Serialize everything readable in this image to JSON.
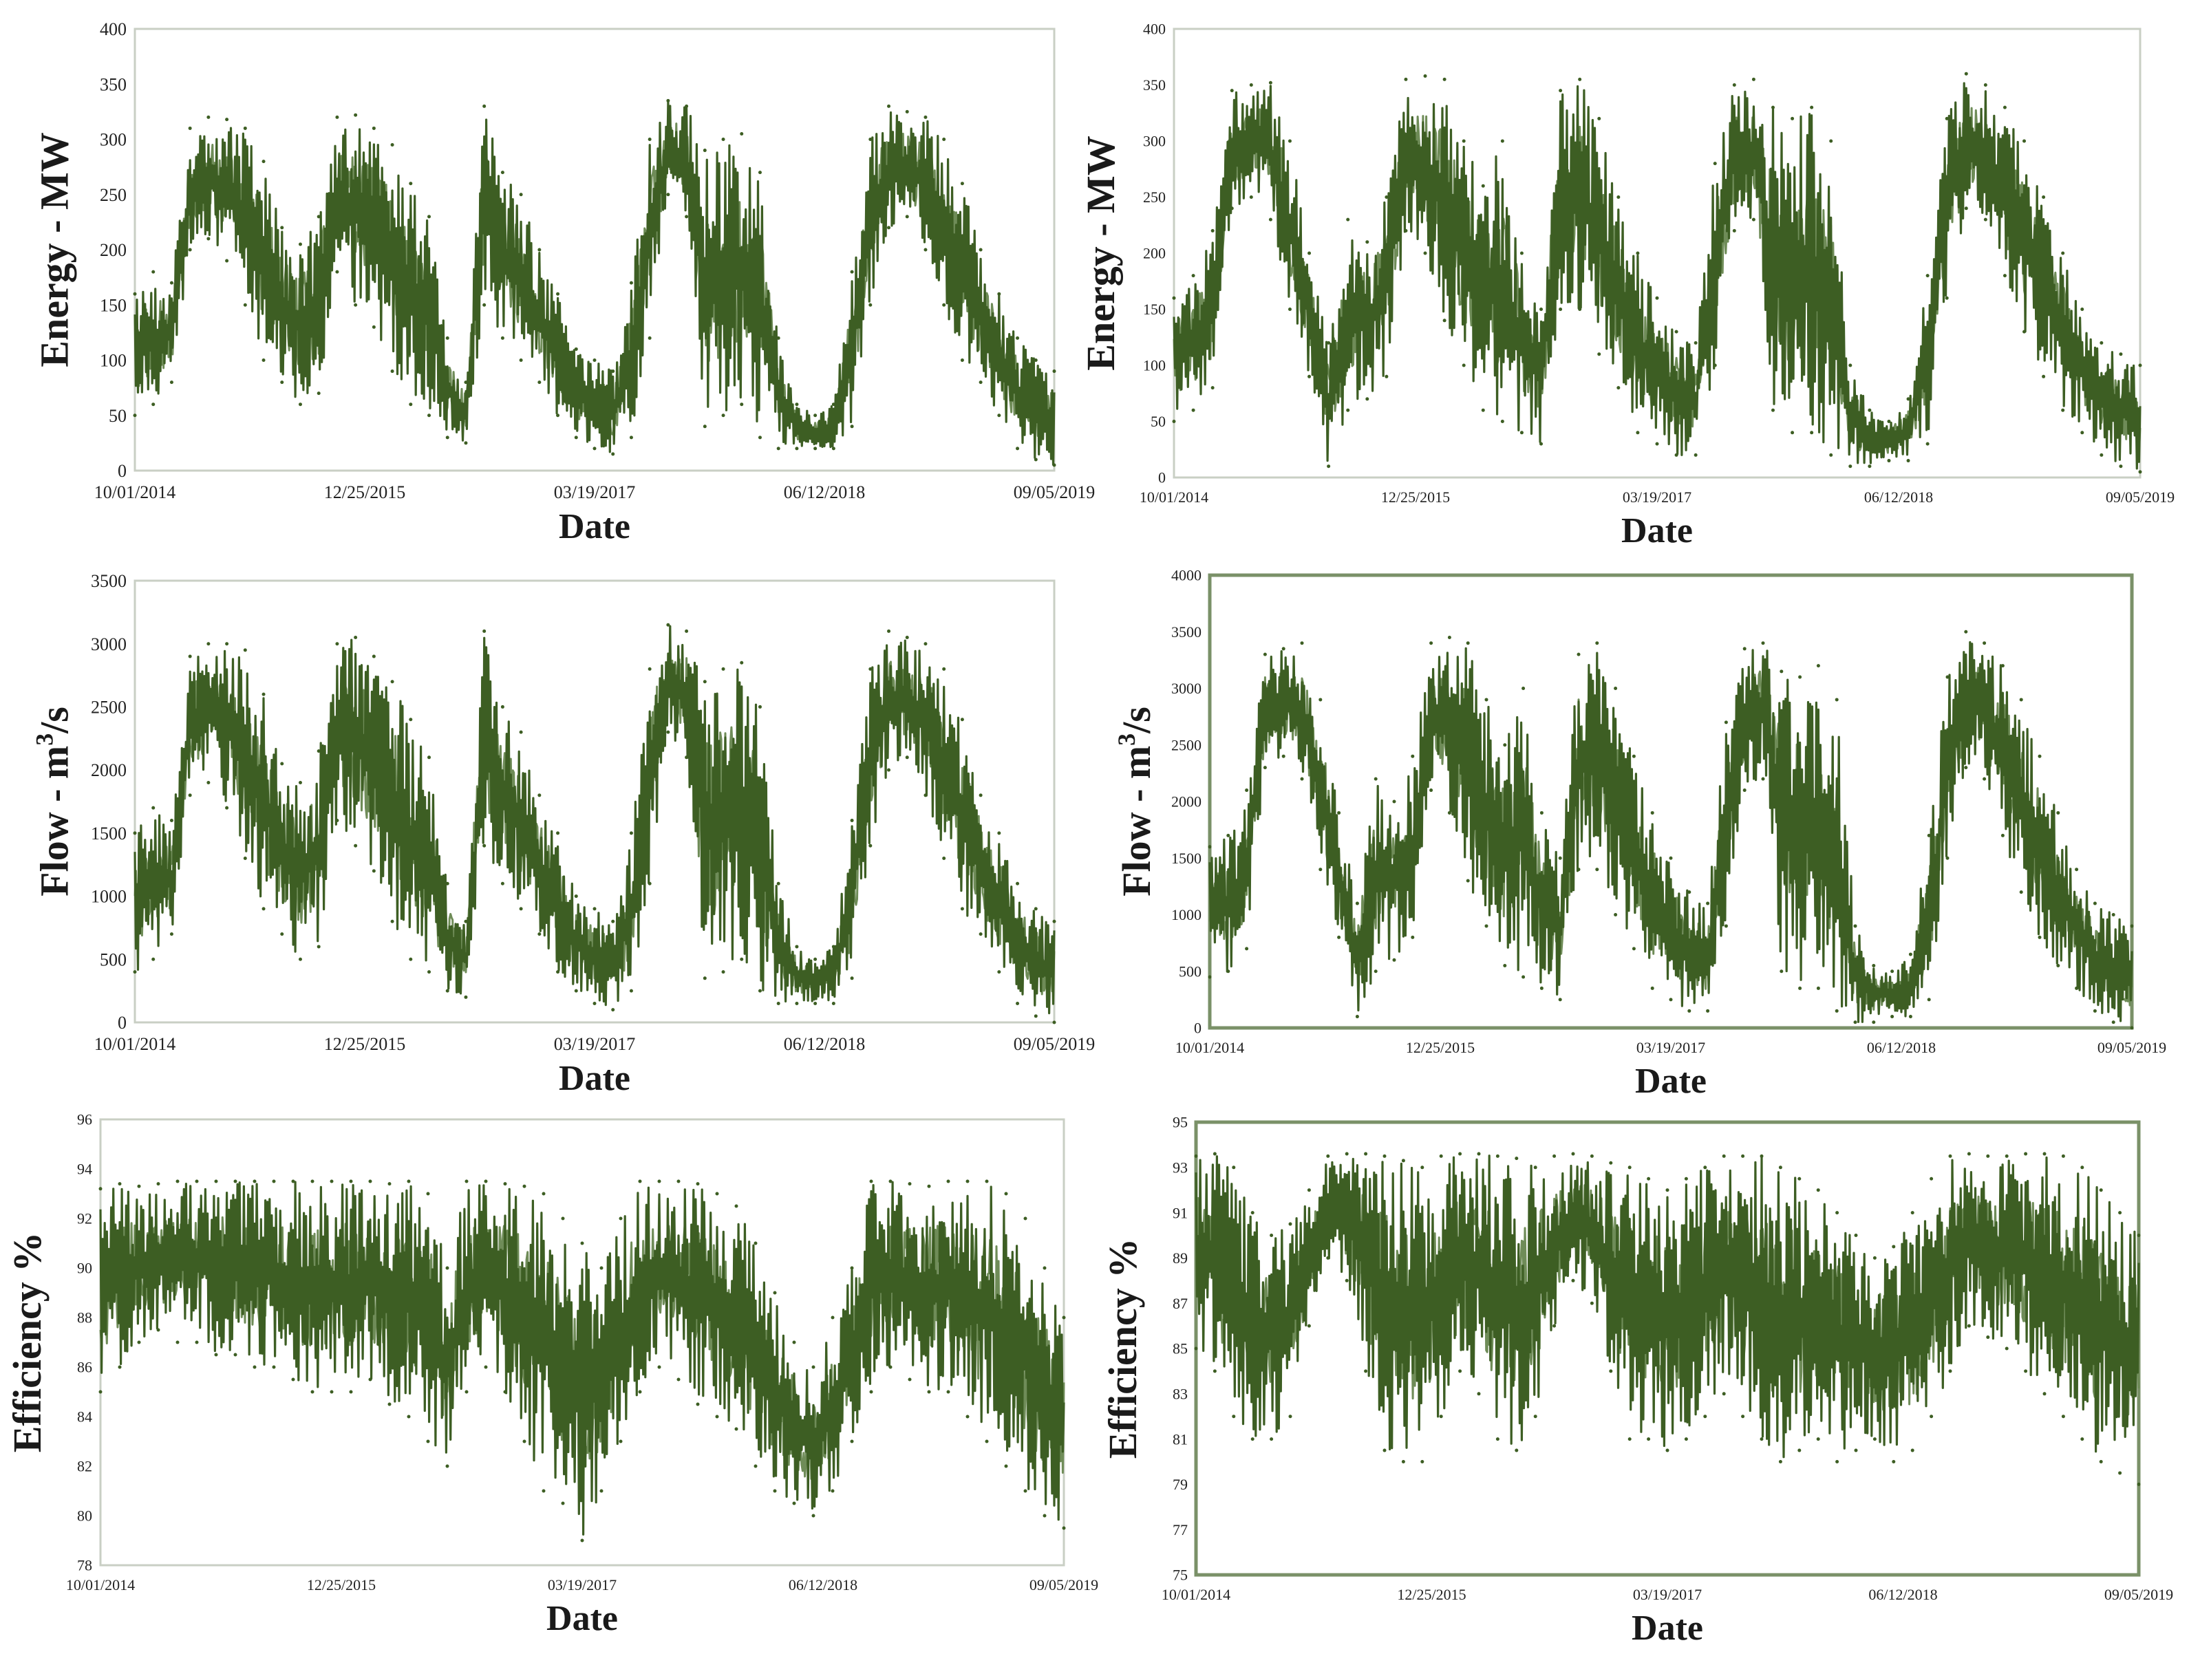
{
  "colors": {
    "series": "#3d5e23",
    "series_light": "#6f8c58",
    "frame": "#c9cfc4",
    "frame_heavy": "#7a9168",
    "background": "#ffffff"
  },
  "x_tick_labels": [
    "10/01/2014",
    "12/25/2015",
    "03/19/2017",
    "06/12/2018",
    "09/05/2019"
  ],
  "chart_data": [
    {
      "id": "energy-left",
      "type": "line",
      "title": "",
      "xlabel": "Date",
      "ylabel_text": "Energy - MW",
      "x_tick_labels": [
        "10/01/2014",
        "12/25/2015",
        "03/19/2017",
        "06/12/2018",
        "09/05/2019"
      ],
      "xlim": [
        0,
        100
      ],
      "ylim": [
        0,
        400
      ],
      "y_ticks": [
        0,
        50,
        100,
        150,
        200,
        250,
        300,
        350,
        400
      ],
      "x": [
        0,
        2,
        4,
        6,
        8,
        10,
        12,
        14,
        16,
        18,
        20,
        22,
        24,
        26,
        28,
        30,
        32,
        34,
        36,
        38,
        40,
        42,
        44,
        46,
        48,
        50,
        52,
        54,
        56,
        58,
        60,
        62,
        64,
        66,
        68,
        70,
        72,
        74,
        76,
        78,
        80,
        82,
        84,
        86,
        88,
        90,
        92,
        94,
        96,
        98,
        100
      ],
      "series": [
        {
          "name": "Energy",
          "upper": [
            160,
            180,
            170,
            310,
            320,
            318,
            310,
            280,
            220,
            205,
            230,
            320,
            322,
            310,
            295,
            260,
            230,
            120,
            80,
            330,
            270,
            250,
            200,
            160,
            110,
            100,
            90,
            170,
            300,
            335,
            330,
            290,
            300,
            305,
            270,
            120,
            60,
            50,
            60,
            180,
            300,
            330,
            325,
            320,
            300,
            260,
            200,
            160,
            120,
            100,
            90
          ],
          "lower": [
            50,
            60,
            80,
            200,
            210,
            190,
            150,
            100,
            80,
            60,
            70,
            180,
            150,
            130,
            90,
            60,
            50,
            30,
            25,
            150,
            120,
            100,
            80,
            50,
            30,
            20,
            15,
            30,
            120,
            250,
            230,
            40,
            50,
            60,
            30,
            20,
            20,
            20,
            20,
            40,
            150,
            220,
            230,
            200,
            150,
            100,
            80,
            50,
            20,
            10,
            5
          ]
        }
      ]
    },
    {
      "id": "energy-right",
      "type": "line",
      "title": "",
      "xlabel": "Date",
      "ylabel_text": "Energy - MW",
      "x_tick_labels": [
        "10/01/2014",
        "12/25/2015",
        "03/19/2017",
        "06/12/2018",
        "09/05/2019"
      ],
      "xlim": [
        0,
        100
      ],
      "ylim": [
        0,
        400
      ],
      "y_ticks": [
        0,
        50,
        100,
        150,
        200,
        250,
        300,
        350,
        400
      ],
      "x": [
        0,
        2,
        4,
        6,
        8,
        10,
        12,
        14,
        16,
        18,
        20,
        22,
        24,
        26,
        28,
        30,
        32,
        34,
        36,
        38,
        40,
        42,
        44,
        46,
        48,
        50,
        52,
        54,
        56,
        58,
        60,
        62,
        64,
        66,
        68,
        70,
        72,
        74,
        76,
        78,
        80,
        82,
        84,
        86,
        88,
        90,
        92,
        94,
        96,
        98,
        100
      ],
      "series": [
        {
          "name": "Energy",
          "upper": [
            160,
            180,
            220,
            345,
            350,
            352,
            300,
            200,
            120,
            230,
            210,
            250,
            355,
            358,
            355,
            300,
            260,
            300,
            200,
            150,
            345,
            355,
            320,
            250,
            200,
            160,
            130,
            120,
            280,
            350,
            355,
            330,
            320,
            330,
            300,
            100,
            60,
            50,
            70,
            180,
            320,
            360,
            350,
            330,
            300,
            250,
            200,
            150,
            120,
            110,
            100
          ],
          "lower": [
            50,
            60,
            80,
            240,
            250,
            230,
            150,
            90,
            10,
            60,
            70,
            90,
            220,
            200,
            140,
            100,
            60,
            50,
            40,
            30,
            150,
            150,
            110,
            80,
            40,
            30,
            20,
            20,
            100,
            220,
            230,
            60,
            40,
            40,
            20,
            10,
            10,
            15,
            15,
            30,
            160,
            240,
            230,
            180,
            130,
            90,
            60,
            40,
            20,
            10,
            5
          ]
        }
      ]
    },
    {
      "id": "flow-left",
      "type": "line",
      "title": "",
      "xlabel": "Date",
      "ylabel_text": "Flow - m3/s",
      "x_tick_labels": [
        "10/01/2014",
        "12/25/2015",
        "03/19/2017",
        "06/12/2018",
        "09/05/2019"
      ],
      "xlim": [
        0,
        100
      ],
      "ylim": [
        0,
        3500
      ],
      "y_ticks": [
        0,
        500,
        1000,
        1500,
        2000,
        2500,
        3000,
        3500
      ],
      "x": [
        0,
        2,
        4,
        6,
        8,
        10,
        12,
        14,
        16,
        18,
        20,
        22,
        24,
        26,
        28,
        30,
        32,
        34,
        36,
        38,
        40,
        42,
        44,
        46,
        48,
        50,
        52,
        54,
        56,
        58,
        60,
        62,
        64,
        66,
        68,
        70,
        72,
        74,
        76,
        78,
        80,
        82,
        84,
        86,
        88,
        90,
        92,
        94,
        96,
        98,
        100
      ],
      "series": [
        {
          "name": "Flow",
          "upper": [
            1500,
            1700,
            1600,
            2900,
            3000,
            3000,
            2950,
            2600,
            2050,
            1900,
            2150,
            3000,
            3050,
            2900,
            2700,
            2400,
            2100,
            1100,
            800,
            3100,
            2500,
            2300,
            1800,
            1500,
            1000,
            900,
            800,
            1500,
            2800,
            3150,
            3100,
            2700,
            2800,
            2850,
            2500,
            1100,
            600,
            500,
            600,
            1600,
            2800,
            3100,
            3050,
            3000,
            2800,
            2400,
            1800,
            1500,
            1100,
            900,
            800
          ],
          "lower": [
            400,
            500,
            700,
            1800,
            1900,
            1700,
            1300,
            900,
            700,
            500,
            600,
            1600,
            1400,
            1200,
            800,
            500,
            400,
            250,
            200,
            1400,
            1100,
            900,
            700,
            400,
            250,
            150,
            100,
            250,
            1100,
            2300,
            2100,
            350,
            400,
            500,
            250,
            150,
            150,
            150,
            150,
            350,
            1400,
            2000,
            2100,
            1800,
            1300,
            900,
            700,
            400,
            150,
            50,
            0
          ]
        }
      ]
    },
    {
      "id": "flow-right",
      "type": "line",
      "title": "",
      "xlabel": "Date",
      "ylabel_text": "Flow - m3/s",
      "x_tick_labels": [
        "10/01/2014",
        "12/25/2015",
        "03/19/2017",
        "06/12/2018",
        "09/05/2019"
      ],
      "xlim": [
        0,
        100
      ],
      "ylim": [
        0,
        4000
      ],
      "y_ticks": [
        0,
        500,
        1000,
        1500,
        2000,
        2500,
        3000,
        3500,
        4000
      ],
      "x": [
        0,
        2,
        4,
        6,
        8,
        10,
        12,
        14,
        16,
        18,
        20,
        22,
        24,
        26,
        28,
        30,
        32,
        34,
        36,
        38,
        40,
        42,
        44,
        46,
        48,
        50,
        52,
        54,
        56,
        58,
        60,
        62,
        64,
        66,
        68,
        70,
        72,
        74,
        76,
        78,
        80,
        82,
        84,
        86,
        88,
        90,
        92,
        94,
        96,
        98,
        100
      ],
      "series": [
        {
          "name": "Flow",
          "upper": [
            1600,
            1700,
            2100,
            3300,
            3350,
            3400,
            2900,
            1900,
            1100,
            2200,
            2000,
            2400,
            3400,
            3450,
            3400,
            2900,
            2500,
            3000,
            1900,
            1500,
            3300,
            3400,
            3000,
            2400,
            1900,
            1500,
            1200,
            1100,
            2700,
            3350,
            3400,
            3150,
            3100,
            3200,
            2900,
            900,
            550,
            500,
            650,
            1700,
            3100,
            3500,
            3400,
            3200,
            2900,
            2400,
            1900,
            1400,
            1100,
            1000,
            900
          ],
          "lower": [
            450,
            500,
            700,
            2300,
            2400,
            2200,
            1400,
            800,
            100,
            500,
            600,
            800,
            2100,
            1900,
            1300,
            900,
            550,
            450,
            350,
            250,
            1400,
            1400,
            1000,
            700,
            350,
            250,
            150,
            150,
            900,
            2100,
            2200,
            500,
            350,
            350,
            150,
            50,
            50,
            100,
            100,
            250,
            1500,
            2300,
            2200,
            1700,
            1200,
            800,
            550,
            350,
            150,
            50,
            0
          ]
        }
      ]
    },
    {
      "id": "efficiency-left",
      "type": "line",
      "title": "",
      "xlabel": "Date",
      "ylabel_text": "Efficiency %",
      "x_tick_labels": [
        "10/01/2014",
        "12/25/2015",
        "03/19/2017",
        "06/12/2018",
        "09/05/2019"
      ],
      "xlim": [
        0,
        100
      ],
      "ylim": [
        78,
        96
      ],
      "y_ticks": [
        78,
        80,
        82,
        84,
        86,
        88,
        90,
        92,
        94,
        96
      ],
      "x": [
        0,
        2,
        4,
        6,
        8,
        10,
        12,
        14,
        16,
        18,
        20,
        22,
        24,
        26,
        28,
        30,
        32,
        34,
        36,
        38,
        40,
        42,
        44,
        46,
        48,
        50,
        52,
        54,
        56,
        58,
        60,
        62,
        64,
        66,
        68,
        70,
        72,
        74,
        76,
        78,
        80,
        82,
        84,
        86,
        88,
        90,
        92,
        94,
        96,
        98,
        100
      ],
      "series": [
        {
          "name": "Efficiency",
          "upper": [
            93.2,
            93.4,
            93.3,
            93.4,
            93.5,
            93.5,
            93.5,
            93.5,
            93.5,
            93.5,
            93.5,
            93.5,
            93.5,
            93.5,
            93.5,
            93.4,
            93.5,
            93.0,
            90.0,
            93.5,
            93.5,
            93.4,
            93.3,
            93.0,
            92.0,
            91.0,
            90.0,
            92.0,
            93.5,
            93.5,
            93.5,
            93.4,
            93.0,
            92.5,
            91.0,
            89.0,
            87.0,
            86.0,
            88.0,
            90.0,
            93.5,
            93.5,
            93.4,
            93.3,
            93.5,
            93.5,
            93.5,
            93.0,
            92.0,
            90.0,
            88.0
          ],
          "lower": [
            85.0,
            86.0,
            87.0,
            87.5,
            87.0,
            87.0,
            86.5,
            86.5,
            86.0,
            86.0,
            85.5,
            85.0,
            85.0,
            85.0,
            85.5,
            84.5,
            84.0,
            83.0,
            82.0,
            85.0,
            86.0,
            85.0,
            83.0,
            81.0,
            80.5,
            79.0,
            81.0,
            83.0,
            85.0,
            86.0,
            85.5,
            84.5,
            84.0,
            83.5,
            82.0,
            81.0,
            80.5,
            80.0,
            81.0,
            83.0,
            85.0,
            86.0,
            85.5,
            85.0,
            85.0,
            84.0,
            83.0,
            82.0,
            81.0,
            80.0,
            79.5
          ]
        }
      ]
    },
    {
      "id": "efficiency-right",
      "type": "line",
      "title": "",
      "xlabel": "Date",
      "ylabel_text": "Efficiency %",
      "x_tick_labels": [
        "10/01/2014",
        "12/25/2015",
        "03/19/2017",
        "06/12/2018",
        "09/05/2019"
      ],
      "xlim": [
        0,
        100
      ],
      "ylim": [
        75,
        95
      ],
      "y_ticks": [
        75,
        77,
        79,
        81,
        83,
        85,
        87,
        89,
        91,
        93,
        95
      ],
      "x": [
        0,
        2,
        4,
        6,
        8,
        10,
        12,
        14,
        16,
        18,
        20,
        22,
        24,
        26,
        28,
        30,
        32,
        34,
        36,
        38,
        40,
        42,
        44,
        46,
        48,
        50,
        52,
        54,
        56,
        58,
        60,
        62,
        64,
        66,
        68,
        70,
        72,
        74,
        76,
        78,
        80,
        82,
        84,
        86,
        88,
        90,
        92,
        94,
        96,
        98,
        100
      ],
      "series": [
        {
          "name": "Efficiency",
          "upper": [
            93.5,
            93.6,
            93.0,
            91.0,
            90.0,
            90.5,
            92.0,
            93.5,
            93.6,
            93.6,
            93.5,
            93.3,
            93.0,
            93.5,
            93.6,
            93.6,
            93.5,
            93.4,
            93.0,
            93.5,
            93.6,
            93.5,
            93.2,
            93.0,
            92.5,
            92.0,
            92.5,
            93.0,
            93.5,
            93.5,
            93.5,
            93.0,
            92.5,
            92.0,
            91.0,
            90.0,
            89.0,
            89.5,
            91.0,
            92.5,
            93.5,
            93.6,
            93.5,
            93.5,
            93.6,
            93.6,
            93.5,
            93.0,
            92.0,
            91.0,
            90.0
          ],
          "lower": [
            85.0,
            84.0,
            82.0,
            81.0,
            81.0,
            82.0,
            86.0,
            89.0,
            88.0,
            84.0,
            80.5,
            80.0,
            80.0,
            82.0,
            84.0,
            83.0,
            81.0,
            80.5,
            82.0,
            86.0,
            88.0,
            87.0,
            84.0,
            81.0,
            81.0,
            80.5,
            81.0,
            82.0,
            83.0,
            82.0,
            81.0,
            80.0,
            80.5,
            81.0,
            80.0,
            80.5,
            81.0,
            80.0,
            80.5,
            82.0,
            84.0,
            86.0,
            85.5,
            85.0,
            84.0,
            83.0,
            82.0,
            81.0,
            80.0,
            79.5,
            79.0
          ]
        }
      ]
    }
  ]
}
